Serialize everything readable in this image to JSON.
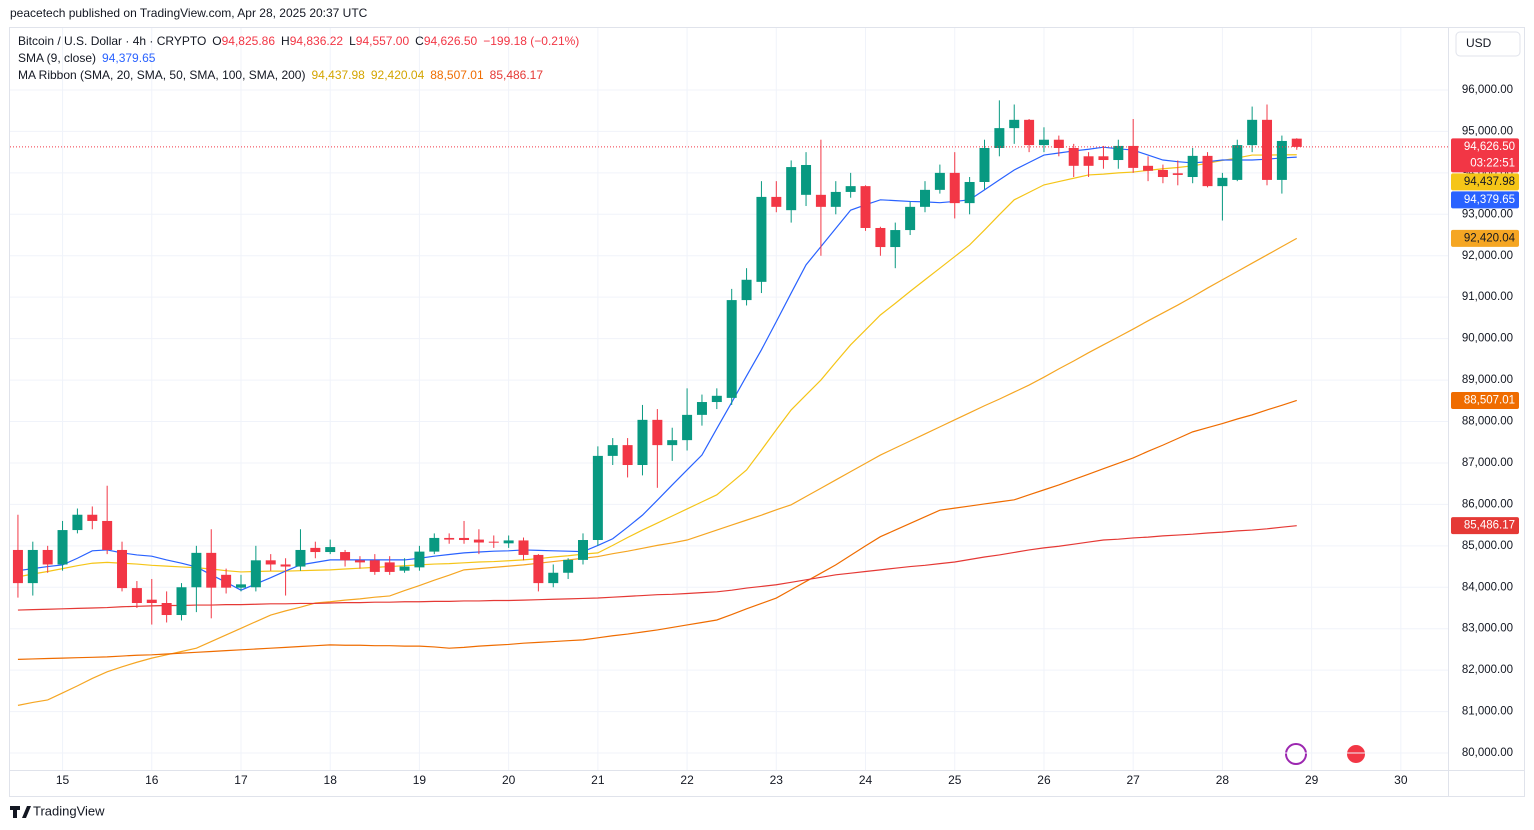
{
  "header": {
    "publisher": "peacetech published on TradingView.com, Apr 28, 2025 20:37 UTC"
  },
  "footer": {
    "brand": "TradingView"
  },
  "chart_data": {
    "type": "candlestick",
    "currency": "USD",
    "legend": {
      "symbol": "Bitcoin / U.S. Dollar · 4h · CRYPTO",
      "ohlc": [
        {
          "key": "O",
          "text": "94,825.86"
        },
        {
          "key": "H",
          "text": "94,836.22"
        },
        {
          "key": "L",
          "text": "94,557.00"
        },
        {
          "key": "C",
          "text": "94,626.50"
        }
      ],
      "change": "−199.18 (−0.21%)"
    },
    "categories": [
      null,
      null,
      null,
      "15",
      null,
      null,
      null,
      null,
      null,
      "16",
      null,
      null,
      null,
      null,
      null,
      "17",
      null,
      null,
      null,
      null,
      null,
      "18",
      null,
      null,
      null,
      null,
      null,
      "19",
      null,
      null,
      null,
      null,
      null,
      "20",
      null,
      null,
      null,
      null,
      null,
      "21",
      null,
      null,
      null,
      null,
      null,
      "22",
      null,
      null,
      null,
      null,
      null,
      "23",
      null,
      null,
      null,
      null,
      null,
      "24",
      null,
      null,
      null,
      null,
      null,
      "25",
      null,
      null,
      null,
      null,
      null,
      "26",
      null,
      null,
      null,
      null,
      null,
      "27",
      null,
      null,
      null,
      null,
      null,
      "28",
      null,
      null,
      null,
      null,
      null,
      "29",
      null,
      null,
      null,
      null,
      null,
      "30",
      null,
      null
    ],
    "open": [
      84900,
      84100,
      84900,
      84550,
      85380,
      85750,
      85600,
      84900,
      83980,
      83700,
      83620,
      83330,
      84000,
      84830,
      84300,
      83990,
      84000,
      84650,
      84550,
      84500,
      84950,
      84850,
      84850,
      84650,
      84650,
      84600,
      84400,
      84480,
      84860,
      85190,
      85190,
      85150,
      85100,
      85060,
      85130,
      84780,
      84100,
      84350,
      84660,
      85140,
      87170,
      87430,
      86950,
      88040,
      87430,
      87550,
      88160,
      88470,
      88570,
      90930,
      91370,
      93420,
      93100,
      93470,
      93470,
      93180,
      93540,
      93680,
      92670,
      92210,
      92620,
      93180,
      93590,
      94000,
      93270,
      93780,
      94600,
      95080,
      95280,
      94670,
      94800,
      94600,
      94400,
      94400,
      94310,
      94650,
      94170,
      94070,
      93990,
      93900,
      94410,
      93680,
      93830,
      94670,
      95280,
      93830,
      94825.86,
      null,
      null,
      null,
      null,
      null,
      null,
      null,
      null,
      null
    ],
    "high": [
      85750,
      85100,
      85000,
      85600,
      85900,
      85950,
      86450,
      85100,
      84150,
      84200,
      83900,
      84100,
      85000,
      85400,
      84450,
      84300,
      85000,
      84800,
      84700,
      85400,
      85100,
      85150,
      84900,
      84750,
      84800,
      84750,
      84700,
      85000,
      85300,
      85300,
      85600,
      85400,
      85250,
      85250,
      85200,
      84800,
      84550,
      84700,
      85300,
      87400,
      87600,
      87600,
      88400,
      88300,
      87850,
      88800,
      88650,
      88800,
      91200,
      91700,
      93800,
      93800,
      94300,
      94500,
      94800,
      93800,
      94000,
      93700,
      92700,
      92800,
      93300,
      93800,
      94200,
      94500,
      93900,
      94800,
      95750,
      95650,
      95300,
      95100,
      94900,
      94700,
      94500,
      94650,
      94800,
      95300,
      94400,
      94200,
      94300,
      94600,
      94500,
      94000,
      94800,
      95600,
      95650,
      94900,
      94836.22,
      null,
      null,
      null,
      null,
      null,
      null,
      null,
      null,
      null
    ],
    "low": [
      83750,
      83800,
      84350,
      84400,
      85300,
      85400,
      84800,
      83900,
      83500,
      83100,
      83150,
      83200,
      83400,
      83250,
      83850,
      83900,
      83900,
      84400,
      83800,
      84400,
      84700,
      84800,
      84500,
      84450,
      84300,
      84300,
      84350,
      84400,
      84800,
      85050,
      85050,
      84800,
      84950,
      84950,
      84650,
      83900,
      84000,
      84200,
      84550,
      85000,
      86950,
      86650,
      86700,
      86400,
      87050,
      87300,
      87900,
      88300,
      88400,
      90800,
      91100,
      93050,
      92800,
      93200,
      92000,
      93000,
      93400,
      92600,
      92000,
      91700,
      92500,
      93050,
      93500,
      92900,
      93000,
      93600,
      94400,
      94700,
      94500,
      94500,
      94400,
      93900,
      93900,
      94100,
      94100,
      94000,
      93800,
      93750,
      93700,
      93750,
      93650,
      92850,
      93800,
      94500,
      93700,
      93500,
      94557,
      null,
      null,
      null,
      null,
      null,
      null,
      null,
      null,
      null
    ],
    "close": [
      84100,
      84900,
      84550,
      85380,
      85750,
      85600,
      84900,
      83980,
      83620,
      83620,
      83330,
      84000,
      84830,
      83990,
      83990,
      84070,
      84650,
      84550,
      84500,
      84900,
      84850,
      84970,
      84650,
      84600,
      84370,
      84370,
      84500,
      84860,
      85190,
      85150,
      85140,
      85080,
      85090,
      85130,
      84780,
      84100,
      84350,
      84660,
      85140,
      87170,
      87430,
      86950,
      88040,
      87430,
      87550,
      88160,
      88470,
      88620,
      90930,
      91420,
      93420,
      93180,
      94140,
      94190,
      93180,
      93540,
      93680,
      92670,
      92210,
      92620,
      93180,
      93590,
      94000,
      93270,
      93780,
      94600,
      95080,
      95280,
      94670,
      94800,
      94600,
      94170,
      94170,
      94310,
      94650,
      94120,
      94050,
      93900,
      93950,
      94410,
      93680,
      93880,
      94670,
      95280,
      93830,
      94770,
      94626.5,
      null,
      null,
      null,
      null,
      null,
      null,
      null,
      null,
      null
    ],
    "up_color": "#089981",
    "down_color": "#f23645",
    "last_price": {
      "label": "94,626.50",
      "countdown": "03:22:51"
    },
    "series": [
      {
        "name": "SMA (9, close)",
        "color": "#2962ff",
        "last_label": "94,379.65",
        "values": [
          84400,
          84450,
          84500,
          84540,
          84700,
          84880,
          84900,
          84830,
          84780,
          84750,
          84660,
          84580,
          84490,
          84300,
          84120,
          83930,
          84080,
          84230,
          84390,
          84540,
          84600,
          84660,
          84660,
          84660,
          84660,
          84660,
          84660,
          84700,
          84750,
          84790,
          84830,
          84850,
          84870,
          84880,
          84900,
          84890,
          84880,
          84870,
          84860,
          85010,
          85170,
          85450,
          85740,
          86100,
          86470,
          86830,
          87190,
          87830,
          88460,
          89100,
          89730,
          90410,
          91100,
          91780,
          92220,
          92660,
          93100,
          93230,
          93350,
          93330,
          93310,
          93300,
          93280,
          93310,
          93350,
          93590,
          93830,
          94070,
          94250,
          94430,
          94480,
          94530,
          94570,
          94620,
          94580,
          94550,
          94430,
          94310,
          94270,
          94240,
          94270,
          94310,
          94310,
          94310,
          94330,
          94360,
          94379.65,
          null,
          null,
          null,
          null,
          null,
          null,
          null,
          null,
          null
        ]
      }
    ],
    "ribbon": {
      "name": "MA Ribbon (SMA, 20, SMA, 50, SMA, 100, SMA, 200)",
      "lines": [
        {
          "color": "#f5c518",
          "last_label": "94,437.98",
          "values": [
            84250,
            84320,
            84380,
            84450,
            84520,
            84580,
            84600,
            84580,
            84560,
            84530,
            84510,
            84490,
            84470,
            84440,
            84400,
            84370,
            84380,
            84390,
            84390,
            84400,
            84410,
            84420,
            84440,
            84460,
            84480,
            84500,
            84520,
            84540,
            84560,
            84570,
            84590,
            84610,
            84620,
            84640,
            84660,
            84690,
            84730,
            84760,
            84800,
            84830,
            85010,
            85200,
            85380,
            85550,
            85720,
            85890,
            86060,
            86230,
            86530,
            86830,
            87310,
            87800,
            88280,
            88640,
            89000,
            89430,
            89850,
            90210,
            90570,
            90850,
            91140,
            91420,
            91700,
            91980,
            92260,
            92620,
            92990,
            93350,
            93530,
            93710,
            93790,
            93870,
            93950,
            93970,
            94000,
            94020,
            94060,
            94100,
            94130,
            94170,
            94230,
            94300,
            94360,
            94430,
            94430,
            94435,
            94437.98,
            null,
            null,
            null,
            null,
            null,
            null,
            null,
            null,
            null
          ]
        },
        {
          "color": "#f5a623",
          "last_label": "92,420.04",
          "values": [
            81150,
            81220,
            81280,
            81450,
            81620,
            81800,
            81960,
            82080,
            82190,
            82290,
            82370,
            82450,
            82530,
            82690,
            82850,
            83010,
            83170,
            83330,
            83430,
            83520,
            83620,
            83650,
            83690,
            83720,
            83760,
            83790,
            83920,
            84040,
            84170,
            84290,
            84420,
            84450,
            84480,
            84510,
            84540,
            84580,
            84620,
            84660,
            84700,
            84740,
            84810,
            84870,
            84940,
            85010,
            85070,
            85140,
            85260,
            85380,
            85500,
            85620,
            85740,
            85870,
            85990,
            86190,
            86390,
            86590,
            86790,
            86990,
            87190,
            87360,
            87530,
            87700,
            87870,
            88040,
            88210,
            88380,
            88540,
            88710,
            88880,
            89070,
            89270,
            89460,
            89660,
            89850,
            90040,
            90230,
            90430,
            90620,
            90810,
            91010,
            91220,
            91420,
            91620,
            91820,
            92020,
            92220,
            92420.04,
            null,
            null,
            null,
            null,
            null,
            null,
            null,
            null,
            null
          ]
        },
        {
          "color": "#ef6c00",
          "last_label": "88,507.01",
          "values": [
            82260,
            82270,
            82280,
            82290,
            82300,
            82310,
            82320,
            82340,
            82360,
            82370,
            82390,
            82410,
            82430,
            82450,
            82470,
            82490,
            82510,
            82530,
            82550,
            82570,
            82590,
            82610,
            82600,
            82600,
            82590,
            82590,
            82580,
            82580,
            82560,
            82530,
            82550,
            82580,
            82600,
            82620,
            82650,
            82670,
            82690,
            82710,
            82730,
            82780,
            82830,
            82870,
            82920,
            82970,
            83030,
            83090,
            83150,
            83210,
            83340,
            83480,
            83610,
            83740,
            83940,
            84140,
            84340,
            84540,
            84770,
            85000,
            85220,
            85380,
            85540,
            85700,
            85860,
            85910,
            85960,
            86010,
            86060,
            86110,
            86230,
            86350,
            86470,
            86600,
            86730,
            86860,
            86990,
            87120,
            87280,
            87430,
            87590,
            87750,
            87850,
            87950,
            88060,
            88160,
            88280,
            88390,
            88507.01,
            null,
            null,
            null,
            null,
            null,
            null,
            null,
            null,
            null
          ]
        },
        {
          "color": "#e53935",
          "last_label": "85,486.17",
          "values": [
            83450,
            83460,
            83470,
            83480,
            83490,
            83500,
            83510,
            83530,
            83540,
            83550,
            83560,
            83560,
            83570,
            83570,
            83580,
            83580,
            83590,
            83600,
            83600,
            83610,
            83610,
            83620,
            83630,
            83630,
            83640,
            83640,
            83650,
            83650,
            83660,
            83660,
            83670,
            83670,
            83680,
            83680,
            83690,
            83700,
            83710,
            83720,
            83730,
            83740,
            83760,
            83780,
            83800,
            83820,
            83830,
            83850,
            83870,
            83890,
            83930,
            83980,
            84020,
            84060,
            84120,
            84180,
            84240,
            84300,
            84340,
            84380,
            84420,
            84460,
            84500,
            84530,
            84570,
            84610,
            84670,
            84730,
            84780,
            84840,
            84900,
            84950,
            84990,
            85040,
            85090,
            85140,
            85160,
            85190,
            85210,
            85240,
            85260,
            85280,
            85310,
            85330,
            85360,
            85380,
            85410,
            85450,
            85486.17,
            null,
            null,
            null,
            null,
            null,
            null,
            null,
            null,
            null
          ]
        }
      ]
    },
    "ylim": [
      79590,
      97496
    ],
    "yticks": [
      {
        "value": 80000,
        "label": "80,000.00"
      },
      {
        "value": 81000,
        "label": "81,000.00"
      },
      {
        "value": 82000,
        "label": "82,000.00"
      },
      {
        "value": 83000,
        "label": "83,000.00"
      },
      {
        "value": 84000,
        "label": "84,000.00"
      },
      {
        "value": 85000,
        "label": "85,000.00"
      },
      {
        "value": 86000,
        "label": "86,000.00"
      },
      {
        "value": 87000,
        "label": "87,000.00"
      },
      {
        "value": 88000,
        "label": "88,000.00"
      },
      {
        "value": 89000,
        "label": "89,000.00"
      },
      {
        "value": 90000,
        "label": "90,000.00"
      },
      {
        "value": 91000,
        "label": "91,000.00"
      },
      {
        "value": 92000,
        "label": "92,000.00"
      },
      {
        "value": 93000,
        "label": "93,000.00"
      },
      {
        "value": 94000,
        "label": "94,000.00"
      },
      {
        "value": 95000,
        "label": "95,000.00"
      },
      {
        "value": 96000,
        "label": "96,000.00"
      }
    ],
    "grid": true
  }
}
